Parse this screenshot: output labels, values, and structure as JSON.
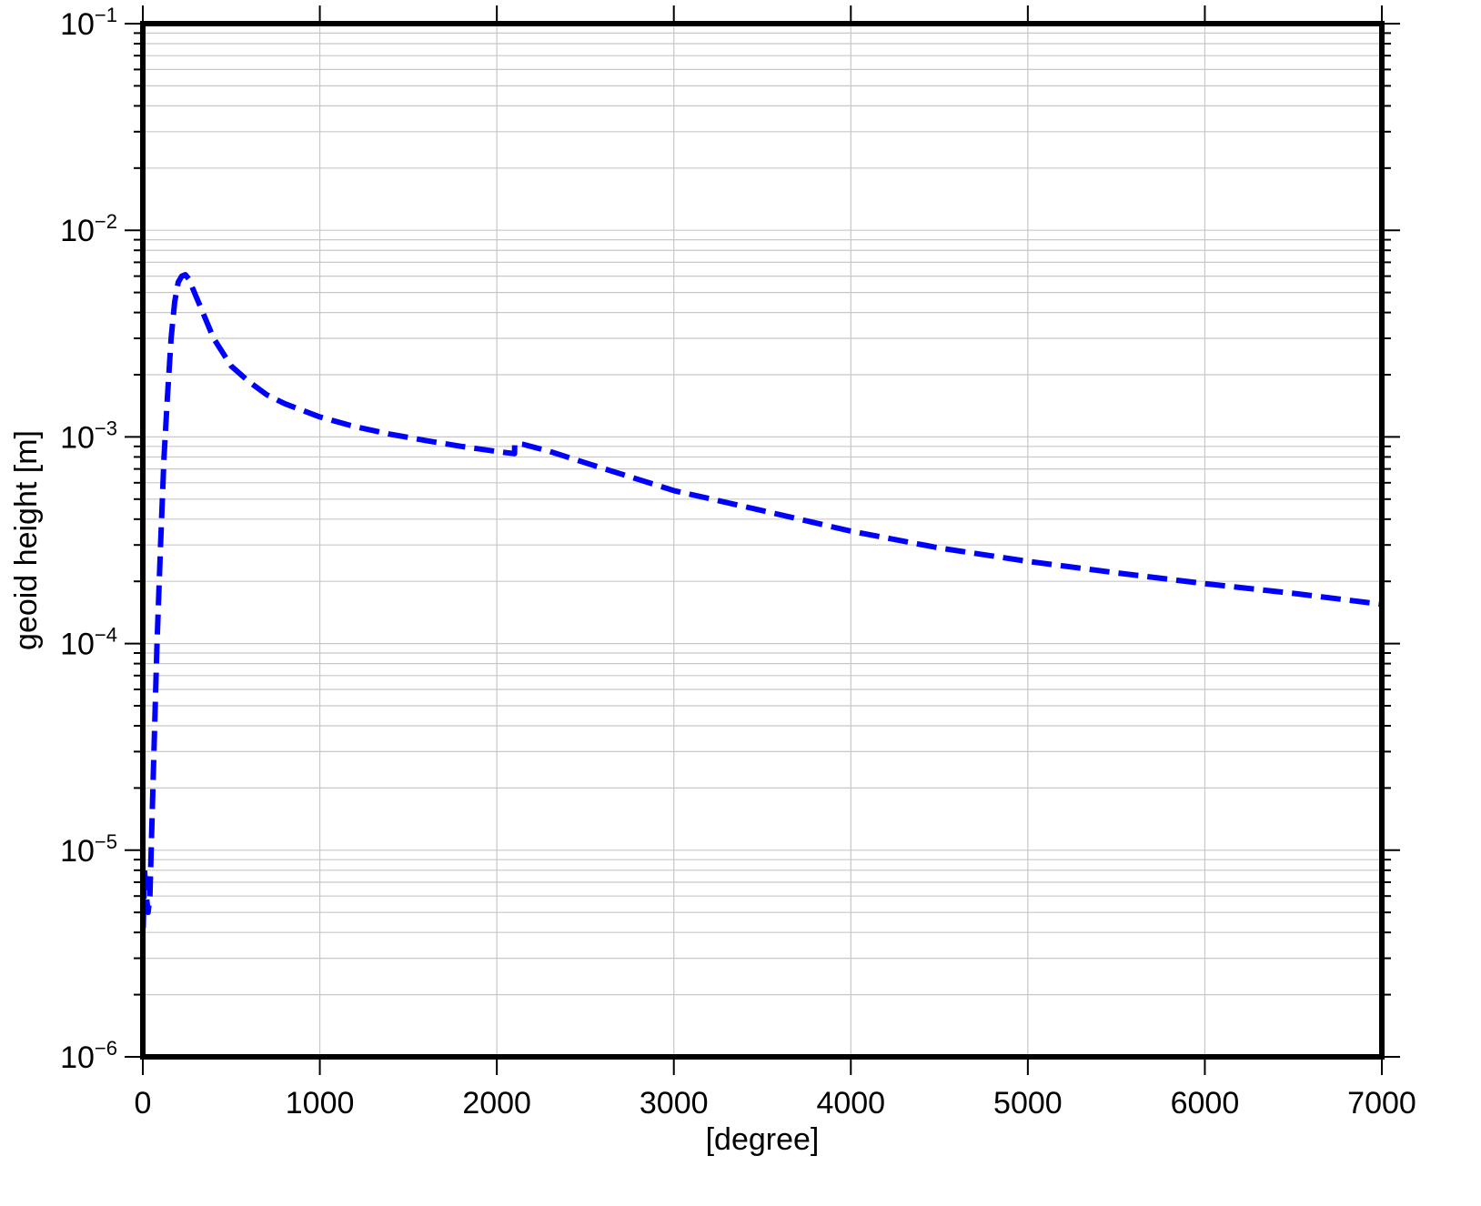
{
  "chart_data": {
    "type": "line",
    "title": "",
    "xlabel": "[degree]",
    "ylabel": "geoid height [m]",
    "xlim": [
      0,
      7000
    ],
    "ylim": [
      1e-06,
      0.1
    ],
    "yscale": "log",
    "grid": true,
    "legend": "none",
    "x_ticks": [
      0,
      1000,
      2000,
      3000,
      4000,
      5000,
      6000,
      7000
    ],
    "x_tick_labels": [
      "0",
      "1000",
      "2000",
      "3000",
      "4000",
      "5000",
      "6000",
      "7000"
    ],
    "y_ticks": [
      {
        "value": 0.1,
        "base": "10",
        "exp": "−1"
      },
      {
        "value": 0.01,
        "base": "10",
        "exp": "−2"
      },
      {
        "value": 0.001,
        "base": "10",
        "exp": "−3"
      },
      {
        "value": 0.0001,
        "base": "10",
        "exp": "−4"
      },
      {
        "value": 1e-05,
        "base": "10",
        "exp": "−5"
      },
      {
        "value": 1e-06,
        "base": "10",
        "exp": "−6"
      }
    ],
    "series": [
      {
        "color": "#0000ff",
        "style": "dashed",
        "x": [
          2,
          10,
          20,
          30,
          40,
          60,
          80,
          100,
          120,
          140,
          160,
          180,
          200,
          220,
          240,
          260,
          300,
          350,
          400,
          500,
          600,
          700,
          800,
          1000,
          1200,
          1400,
          1600,
          1800,
          2000,
          2100,
          2101,
          2150,
          2300,
          2500,
          3000,
          3500,
          4000,
          4500,
          5000,
          5500,
          6000,
          6500,
          7000
        ],
        "y": [
          4.2e-06,
          8e-06,
          6e-06,
          5e-06,
          6e-06,
          2.5e-05,
          0.0001,
          0.0003,
          0.0008,
          0.0016,
          0.003,
          0.0045,
          0.0056,
          0.006,
          0.0061,
          0.0058,
          0.0048,
          0.0038,
          0.003,
          0.0022,
          0.00185,
          0.0016,
          0.00145,
          0.00125,
          0.00112,
          0.00103,
          0.00096,
          0.0009,
          0.00085,
          0.00083,
          0.00093,
          0.00092,
          0.00085,
          0.00075,
          0.00055,
          0.00044,
          0.00035,
          0.00029,
          0.00025,
          0.00022,
          0.000195,
          0.000175,
          0.000155
        ]
      }
    ]
  }
}
